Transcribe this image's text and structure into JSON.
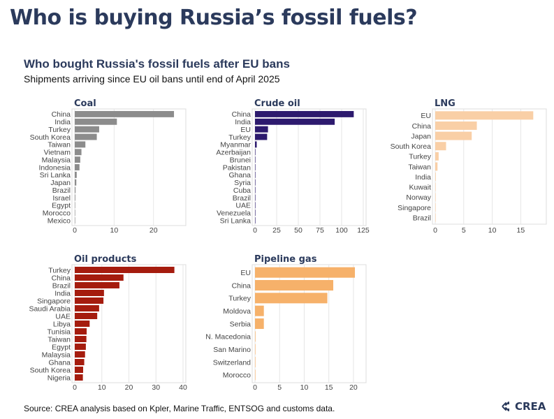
{
  "header": {
    "title": "Who is buying Russia’s fossil fuels?",
    "subtitle": "Who bought Russia's fossil fuels after EU bans",
    "caption": "Shipments arriving since EU oil bans until end of April 2025"
  },
  "footer": {
    "source": "Source: CREA analysis based on Kpler, Marine Traffic, ENTSOG and customs data.",
    "logo_text": "CREA"
  },
  "colors": {
    "coal": "#8c8c8c",
    "crude": "#2d1a6e",
    "lng": "#f9cfa6",
    "oil_products": "#a51c0e",
    "pipeline_gas": "#f6b16a",
    "title": "#2b3a5c"
  },
  "chart_data": [
    {
      "type": "bar",
      "orientation": "horizontal",
      "title": "Coal",
      "categories": [
        "China",
        "India",
        "Turkey",
        "South Korea",
        "Taiwan",
        "Vietnam",
        "Malaysia",
        "Indonesia",
        "Sri Lanka",
        "Japan",
        "Brazil",
        "Israel",
        "Egypt",
        "Morocco",
        "Mexico"
      ],
      "values": [
        25.2,
        10.7,
        6.2,
        5.6,
        2.7,
        1.7,
        1.4,
        1.2,
        0.5,
        0.4,
        0.2,
        0.15,
        0.1,
        0.05,
        0.05
      ],
      "xlim": [
        0,
        27.5
      ],
      "xticks": [
        0,
        10,
        20
      ],
      "color": "#8c8c8c",
      "grid": true
    },
    {
      "type": "bar",
      "orientation": "horizontal",
      "title": "Crude oil",
      "categories": [
        "China",
        "India",
        "EU",
        "Turkey",
        "Myanmar",
        "Azerbaijan",
        "Brunei",
        "Pakistan",
        "Ghana",
        "Syria",
        "Cuba",
        "Brazil",
        "UAE",
        "Venezuela",
        "Sri Lanka"
      ],
      "values": [
        114,
        92,
        15,
        14,
        2,
        0.5,
        0.4,
        0.3,
        0.3,
        0.2,
        0.2,
        0.1,
        0.1,
        0.1,
        0.05
      ],
      "xlim": [
        0,
        125
      ],
      "xticks": [
        0,
        25,
        50,
        75,
        100,
        125
      ],
      "color": "#2d1a6e",
      "grid": true
    },
    {
      "type": "bar",
      "orientation": "horizontal",
      "title": "LNG",
      "categories": [
        "EU",
        "China",
        "Japan",
        "South Korea",
        "Turkey",
        "Taiwan",
        "India",
        "Kuwait",
        "Norway",
        "Singapore",
        "Brazil"
      ],
      "values": [
        17.2,
        7.3,
        6.4,
        1.9,
        0.6,
        0.4,
        0.1,
        0.05,
        0.05,
        0.05,
        0.03
      ],
      "xlim": [
        0,
        19
      ],
      "xticks": [
        0,
        5,
        10,
        15
      ],
      "color": "#f9cfa6",
      "grid": true
    },
    {
      "type": "bar",
      "orientation": "horizontal",
      "title": "Oil products",
      "categories": [
        "Turkey",
        "China",
        "Brazil",
        "India",
        "Singapore",
        "Saudi Arabia",
        "UAE",
        "Libya",
        "Tunisia",
        "Taiwan",
        "Egypt",
        "Malaysia",
        "Ghana",
        "South Korea",
        "Nigeria"
      ],
      "values": [
        36.8,
        18,
        16.5,
        10.8,
        10.6,
        9,
        8.3,
        5.5,
        4.4,
        4.3,
        4.1,
        3.8,
        3.5,
        3.1,
        3.0
      ],
      "xlim": [
        0,
        40
      ],
      "xticks": [
        0,
        10,
        20,
        30,
        40
      ],
      "color": "#a51c0e",
      "grid": true
    },
    {
      "type": "bar",
      "orientation": "horizontal",
      "title": "Pipeline gas",
      "categories": [
        "EU",
        "China",
        "Turkey",
        "Moldova",
        "Serbia",
        "N. Macedonia",
        "San Marino",
        "Switzerland",
        "Morocco"
      ],
      "values": [
        20.3,
        15.9,
        14.7,
        1.8,
        1.8,
        0.1,
        0.05,
        0.05,
        0.05
      ],
      "xlim": [
        0,
        22
      ],
      "xticks": [
        0,
        5,
        10,
        15,
        20
      ],
      "color": "#f6b16a",
      "grid": true
    }
  ]
}
